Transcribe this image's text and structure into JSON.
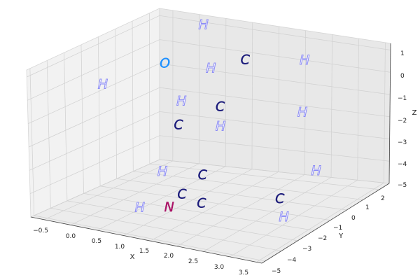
{
  "chart_data": {
    "type": "scatter",
    "title": "",
    "xlabel": "X",
    "ylabel": "Y",
    "zlabel": "Z",
    "x_ticks": [
      "−0.5",
      "0.0",
      "0.5",
      "1.0",
      "1.5",
      "2.0",
      "2.5",
      "3.0",
      "3.5"
    ],
    "y_ticks": [
      "−5",
      "−4",
      "−3",
      "−2",
      "−1",
      "0",
      "1",
      "2"
    ],
    "z_ticks": [
      "1",
      "0",
      "−1",
      "−2",
      "−3",
      "−4",
      "−5"
    ],
    "xlim": [
      -0.75,
      3.6
    ],
    "ylim": [
      -5.2,
      2.6
    ],
    "zlim": [
      -5.0,
      1.3
    ],
    "grid": true,
    "colors": {
      "C": "#1a1a7a",
      "H": "#8c8cf5",
      "O": "#1e90ff",
      "N": "#aa1166"
    },
    "atoms": [
      {
        "symbol": "H",
        "x": 0.3,
        "y": 1.9,
        "z": 1.2
      },
      {
        "symbol": "C",
        "x": 1.4,
        "y": 0.9,
        "z": 0.5
      },
      {
        "symbol": "H",
        "x": 2.4,
        "y": 1.3,
        "z": 0.7
      },
      {
        "symbol": "O",
        "x": 0.1,
        "y": 0.2,
        "z": 0.1
      },
      {
        "symbol": "H",
        "x": 1.0,
        "y": 0.1,
        "z": 0.3
      },
      {
        "symbol": "H",
        "x": -0.7,
        "y": -1.0,
        "z": -0.7
      },
      {
        "symbol": "H",
        "x": 0.6,
        "y": -0.4,
        "z": -1.1
      },
      {
        "symbol": "C",
        "x": 1.3,
        "y": -0.3,
        "z": -1.1
      },
      {
        "symbol": "H",
        "x": 2.7,
        "y": 0.2,
        "z": -1.0
      },
      {
        "symbol": "C",
        "x": 0.7,
        "y": -0.9,
        "z": -1.9
      },
      {
        "symbol": "H",
        "x": 1.4,
        "y": -0.6,
        "z": -1.8
      },
      {
        "symbol": "H",
        "x": 0.8,
        "y": -2.2,
        "z": -3.4
      },
      {
        "symbol": "H",
        "x": 3.3,
        "y": -0.9,
        "z": -2.9
      },
      {
        "symbol": "C",
        "x": 1.4,
        "y": -1.7,
        "z": -3.5
      },
      {
        "symbol": "C",
        "x": 2.8,
        "y": -1.5,
        "z": -4.1
      },
      {
        "symbol": "C",
        "x": 1.2,
        "y": -2.3,
        "z": -4.2
      },
      {
        "symbol": "C",
        "x": 1.6,
        "y": -2.4,
        "z": -4.4
      },
      {
        "symbol": "H",
        "x": 3.4,
        "y": -3.2,
        "z": -3.9
      },
      {
        "symbol": "N",
        "x": 1.3,
        "y": -3.4,
        "z": -4.3
      },
      {
        "symbol": "H",
        "x": 0.9,
        "y": -3.9,
        "z": -4.3
      }
    ]
  }
}
